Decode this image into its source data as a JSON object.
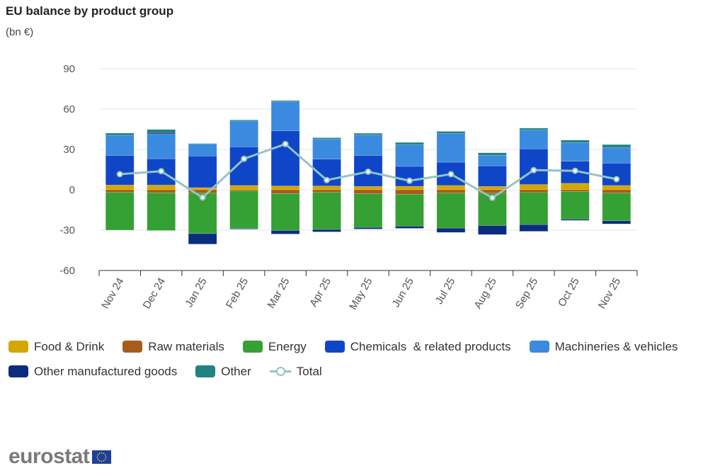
{
  "chart_data": {
    "type": "bar",
    "stacked": true,
    "title": "EU balance by product group",
    "subtitle": "(bn €)",
    "categories": [
      "Nov 24",
      "Dec 24",
      "Jan 25",
      "Feb 25",
      "Mar 25",
      "Apr 25",
      "May 25",
      "Jun 25",
      "Jul 25",
      "Aug 25",
      "Sep 25",
      "Oct 25",
      "Nov 25"
    ],
    "ylim": [
      -60,
      90
    ],
    "yticks": [
      -60,
      -30,
      0,
      30,
      60,
      90
    ],
    "grid": true,
    "legend_position": "bottom",
    "series": [
      {
        "name": "Food & Drink",
        "color": "#d4a600",
        "values": [
          3.5,
          3.5,
          1.6,
          3.2,
          2.8,
          2.8,
          2.5,
          2.6,
          3.2,
          2.5,
          3.9,
          4.8,
          3.2
        ]
      },
      {
        "name": "Raw materials",
        "color": "#a85c1a",
        "values": [
          -2.0,
          -2.3,
          -2.6,
          -0.8,
          -2.8,
          -2.0,
          -3.0,
          -3.3,
          -2.5,
          -2.6,
          -2.1,
          -1.4,
          -2.5
        ]
      },
      {
        "name": "Energy",
        "color": "#35a033",
        "values": [
          -28.0,
          -28.0,
          -30.0,
          -28.0,
          -27.5,
          -27.5,
          -25.0,
          -23.8,
          -26.0,
          -24.0,
          -23.8,
          -20.5,
          -20.6
        ]
      },
      {
        "name": "Chemicals  & related products",
        "color": "#0f46c8",
        "values": [
          22.0,
          19.6,
          23.5,
          28.7,
          41.0,
          20.0,
          23.0,
          14.8,
          17.3,
          15.3,
          26.5,
          16.4,
          16.6
        ]
      },
      {
        "name": "Machineries & vehicles",
        "color": "#3a8ae0",
        "values": [
          15.0,
          18.5,
          8.8,
          19.2,
          21.7,
          15.0,
          15.3,
          16.0,
          21.3,
          7.8,
          14.0,
          13.8,
          11.5
        ]
      },
      {
        "name": "Other manufactured goods",
        "color": "#0a2d7d",
        "values": [
          0,
          0.9,
          -7.8,
          -0.5,
          -2.6,
          -1.8,
          -1.2,
          -1.6,
          -3.2,
          -6.7,
          -5.0,
          -0.9,
          -2.3
        ]
      },
      {
        "name": "Other",
        "color": "#22827f",
        "values": [
          1.6,
          2.3,
          0.5,
          0.8,
          0.8,
          0.9,
          1.2,
          1.8,
          1.6,
          1.9,
          1.4,
          1.9,
          2.3
        ]
      }
    ],
    "line": {
      "name": "Total",
      "color": "#93c4c4",
      "values": [
        11.6,
        13.8,
        -5.8,
        23.0,
        34.0,
        7.2,
        13.4,
        6.7,
        11.6,
        -6.0,
        14.6,
        14.1,
        7.9
      ]
    }
  },
  "logo": {
    "text": "eurostat"
  }
}
